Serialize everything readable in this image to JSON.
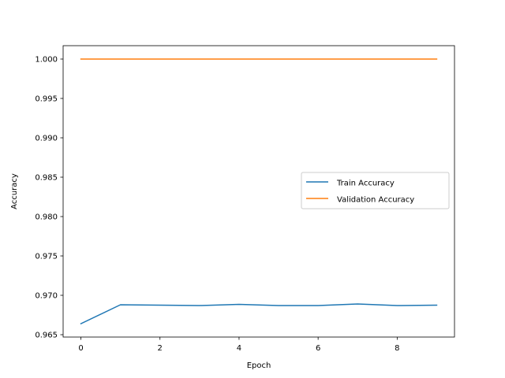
{
  "chart_data": {
    "type": "line",
    "title": "",
    "xlabel": "Epoch",
    "ylabel": "Accuracy",
    "xlim": [
      -0.45,
      9.45
    ],
    "ylim": [
      0.9647,
      1.0017
    ],
    "xticks": [
      0,
      2,
      4,
      6,
      8
    ],
    "xtick_labels": [
      "0",
      "2",
      "4",
      "6",
      "8"
    ],
    "yticks": [
      0.965,
      0.97,
      0.975,
      0.98,
      0.985,
      0.99,
      0.995,
      1.0
    ],
    "ytick_labels": [
      "0.965",
      "0.970",
      "0.975",
      "0.980",
      "0.985",
      "0.990",
      "0.995",
      "1.000"
    ],
    "grid": false,
    "legend_position": "center-right",
    "x": [
      0,
      1,
      2,
      3,
      4,
      5,
      6,
      7,
      8,
      9
    ],
    "series": [
      {
        "name": "Train Accuracy",
        "color": "#1f77b4",
        "values": [
          0.9664,
          0.9688,
          0.96875,
          0.9687,
          0.96885,
          0.9687,
          0.9687,
          0.9689,
          0.9687,
          0.96875
        ]
      },
      {
        "name": "Validation Accuracy",
        "color": "#ff7f0e",
        "values": [
          1.0,
          1.0,
          1.0,
          1.0,
          1.0,
          1.0,
          1.0,
          1.0,
          1.0,
          1.0
        ]
      }
    ]
  }
}
